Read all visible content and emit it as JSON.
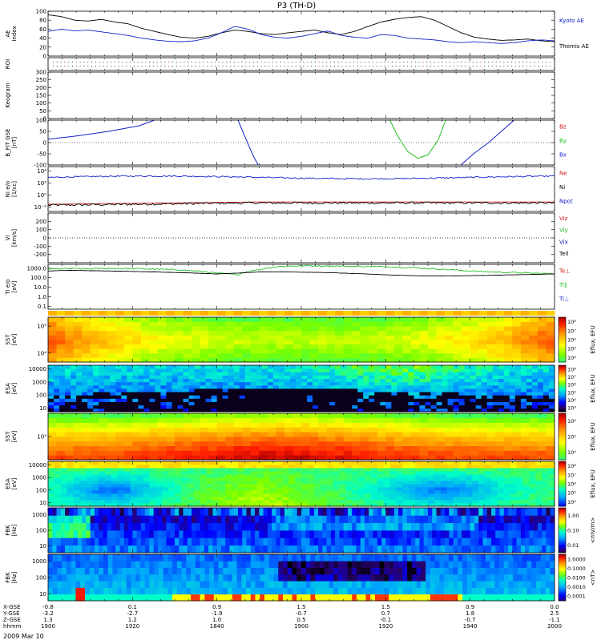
{
  "title": "P3 (TH-D)",
  "date_label": "2009 Mar 10",
  "colors": {
    "black": "#000000",
    "blue": "#1020c8",
    "red": "#cc1010",
    "green": "#20c020",
    "axis": "#000000"
  },
  "time_axis": {
    "rows": [
      {
        "label": "X-GSE",
        "values": [
          "-0.8",
          "0.1",
          "0.9",
          "1.5",
          "1.5",
          "0.9",
          "0.0"
        ]
      },
      {
        "label": "Y-GSE",
        "values": [
          "-3.2",
          "-2.7",
          "-1.9",
          "-0.7",
          "0.7",
          "1.8",
          "2.5"
        ]
      },
      {
        "label": "Z-GSE",
        "values": [
          "1.3",
          "1.2",
          "1.0",
          "0.5",
          "-0.1",
          "-0.7",
          "-1.1"
        ]
      },
      {
        "label": "hhmm",
        "values": [
          "1900",
          "1920",
          "1840",
          "1900",
          "1920",
          "1940",
          "2000"
        ]
      }
    ],
    "raw_ticks": [
      "1900",
      "1920",
      "1840",
      "1900",
      "1920",
      "1940",
      "2000"
    ]
  },
  "chart_data": [
    {
      "type": "line",
      "id": "ae",
      "ylabel": "AE Index",
      "ylim": [
        0,
        100
      ],
      "yticks": [
        "0",
        "20",
        "40",
        "60",
        "80",
        "100"
      ],
      "series": [
        {
          "name": "Kyoto AE",
          "color": "#000000",
          "values": [
            92,
            88,
            80,
            78,
            82,
            76,
            72,
            62,
            55,
            48,
            42,
            40,
            44,
            52,
            58,
            55,
            50,
            48,
            52,
            55,
            58,
            52,
            48,
            55,
            66,
            76,
            82,
            86,
            88,
            80,
            66,
            52,
            42,
            38,
            35,
            36,
            38,
            34,
            32
          ]
        },
        {
          "name": "Themis AE",
          "color": "#1020c8",
          "values": [
            55,
            60,
            56,
            58,
            54,
            50,
            46,
            40,
            36,
            33,
            32,
            34,
            40,
            52,
            66,
            60,
            48,
            42,
            40,
            44,
            50,
            56,
            46,
            42,
            40,
            48,
            46,
            40,
            38,
            36,
            32,
            30,
            32,
            30,
            28,
            30,
            34,
            36,
            34
          ]
        }
      ],
      "right_labels": [
        "Kyoto AE",
        "Themis AE"
      ]
    },
    {
      "type": "scatter",
      "id": "roi",
      "ylabel": "ROI"
    },
    {
      "type": "line",
      "id": "keogram",
      "ylabel": "Keogram",
      "ylim": [
        0,
        300
      ],
      "yticks": [
        "0",
        "50",
        "100",
        "150",
        "200",
        "250",
        "300"
      ]
    },
    {
      "type": "line",
      "id": "bfield",
      "ylabel": "B_FIT GSE [nT]",
      "ylim": [
        -100,
        100
      ],
      "yticks": [
        "-100",
        "-50",
        "0",
        "50",
        "100"
      ],
      "series": [
        {
          "name": "Bx",
          "color": "#1020c8",
          "segments": [
            {
              "x": [
                0.0,
                0.05,
                0.12,
                0.18,
                0.21
              ],
              "y": [
                15,
                28,
                50,
                75,
                100
              ]
            },
            {
              "x": [
                0.375,
                0.39,
                0.405,
                0.415
              ],
              "y": [
                100,
                20,
                -60,
                -100
              ]
            },
            {
              "x": [
                0.815,
                0.84,
                0.87,
                0.9,
                0.92
              ],
              "y": [
                -100,
                -50,
                0,
                60,
                100
              ]
            }
          ]
        },
        {
          "name": "By",
          "color": "#20c020",
          "segments": [
            {
              "x": [
                0.675,
                0.69,
                0.71,
                0.73,
                0.75,
                0.77,
                0.785
              ],
              "y": [
                100,
                30,
                -40,
                -70,
                -55,
                10,
                100
              ]
            }
          ]
        },
        {
          "name": "Bz",
          "color": "#cc1010",
          "segments": []
        }
      ],
      "right_labels": [
        "Bz",
        "By",
        "Bx"
      ]
    },
    {
      "type": "line",
      "id": "density",
      "ylabel": "Ni e/o [1/cc]",
      "ytick_labels": [
        "10⁻²",
        "10⁰",
        "10²",
        "10⁴"
      ],
      "series": [
        {
          "name": "Ne",
          "color": "#cc1010",
          "level": 0.22
        },
        {
          "name": "Ni",
          "color": "#000000",
          "level": 0.18
        },
        {
          "name": "Npot",
          "color": "#1020c8",
          "level": 0.78
        }
      ],
      "right_labels": [
        "Ne",
        "Ni",
        "Npot"
      ]
    },
    {
      "type": "line",
      "id": "velocity",
      "ylabel": "Vi [km/s]",
      "ylim": [
        -300,
        300
      ],
      "yticks": [
        "-200",
        "-100",
        "0",
        "100",
        "200"
      ],
      "right_labels": [
        "Viz",
        "Viy",
        "Vix",
        "Tell"
      ]
    },
    {
      "type": "line",
      "id": "temperature",
      "ylabel": "Ti e/o [eV]",
      "yticks": [
        "0.1",
        "1.0",
        "10.0",
        "100.0",
        "1000.0"
      ],
      "series": [
        {
          "name": "Ti",
          "color": "#20c020",
          "values": [
            800,
            900,
            850,
            950,
            900,
            800,
            700,
            500,
            300,
            200,
            700,
            1500,
            1800,
            1700,
            1600,
            1500,
            1400,
            1200,
            900,
            700,
            500,
            400,
            350,
            300,
            250
          ]
        },
        {
          "name": "Te",
          "color": "#000000",
          "values": [
            500,
            600,
            550,
            500,
            450,
            400,
            350,
            300,
            250,
            300,
            400,
            400,
            380,
            350,
            300,
            250,
            200,
            170,
            150,
            150,
            160,
            180,
            200,
            220,
            250
          ]
        }
      ],
      "right_labels": [
        "Te⊥",
        "Ti∥",
        "Ti⊥"
      ]
    },
    {
      "type": "heatmap",
      "id": "sst1",
      "ylabel": "SST [eV]",
      "ytick_labels": [
        "10⁴",
        "10⁵"
      ],
      "colorbar_label": "Eflux, EFU",
      "colorbar_ticks": [
        "10⁸",
        "10⁷",
        "10⁶",
        "10⁵",
        "10⁴"
      ]
    },
    {
      "type": "heatmap",
      "id": "esa1",
      "ylabel": "ESA [eV]",
      "yticks": [
        "10",
        "100",
        "1000",
        "10000"
      ],
      "colorbar_label": "Eflux, EFU",
      "colorbar_ticks": [
        "10⁸",
        "10⁷",
        "10⁶",
        "10⁵",
        "10⁴",
        "10³"
      ]
    },
    {
      "type": "heatmap",
      "id": "sst2",
      "ylabel": "SST [eV]",
      "ytick_labels": [
        "10⁵"
      ],
      "colorbar_label": "Eflux, EFU",
      "colorbar_ticks": [
        "10⁶",
        "10⁵",
        "10⁴"
      ]
    },
    {
      "type": "heatmap",
      "id": "esa2",
      "ylabel": "ESA [eV]",
      "yticks": [
        "10",
        "100",
        "1000",
        "10000"
      ],
      "colorbar_label": "Eflux, EFU",
      "colorbar_ticks": [
        "10⁸",
        "10⁷",
        "10⁶",
        "10⁵",
        "10⁴"
      ]
    },
    {
      "type": "heatmap",
      "id": "fbk1",
      "ylabel": "FBK [Hz]",
      "yticks": [
        "10",
        "100",
        "1000"
      ],
      "colorbar_label": "<mV/m>",
      "colorbar_ticks": [
        "1.00",
        "0.10",
        "0.01"
      ]
    },
    {
      "type": "heatmap",
      "id": "fbk2",
      "ylabel": "FBK [Hz]",
      "yticks": [
        "10",
        "100",
        "1000"
      ],
      "colorbar_label": "<nT>",
      "colorbar_ticks": [
        "1.0000",
        "0.1000",
        "0.0100",
        "0.0010",
        "0.0001"
      ]
    }
  ]
}
